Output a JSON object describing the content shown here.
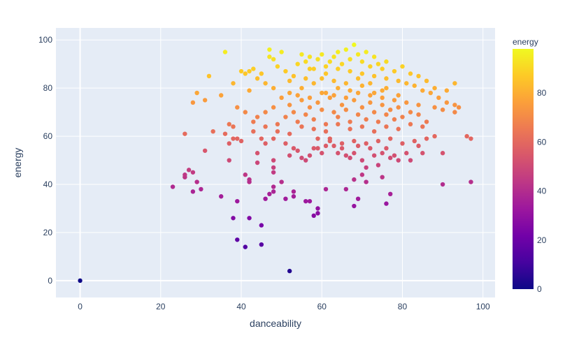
{
  "chart_data": {
    "type": "scatter",
    "title": "",
    "xlabel": "danceability",
    "ylabel": "energy",
    "xlim": [
      -6,
      103
    ],
    "ylim": [
      -7,
      105
    ],
    "xticks": [
      0,
      20,
      40,
      60,
      80,
      100
    ],
    "yticks": [
      0,
      20,
      40,
      60,
      80,
      100
    ],
    "grid": true,
    "colorbar": {
      "title": "energy",
      "range": [
        0,
        98
      ],
      "ticks": [
        0,
        20,
        40,
        60,
        80
      ],
      "colorscale": "plasma"
    },
    "series": [
      {
        "color_by": "energy",
        "points": [
          [
            0,
            0
          ],
          [
            52,
            4
          ],
          [
            41,
            14
          ],
          [
            45,
            15
          ],
          [
            39,
            17
          ],
          [
            38,
            26
          ],
          [
            42,
            26
          ],
          [
            45,
            23
          ],
          [
            23,
            39
          ],
          [
            26,
            43
          ],
          [
            26,
            44
          ],
          [
            27,
            46
          ],
          [
            28,
            45
          ],
          [
            28,
            37
          ],
          [
            29,
            41
          ],
          [
            30,
            38
          ],
          [
            35,
            35
          ],
          [
            39,
            33
          ],
          [
            41,
            44
          ],
          [
            42,
            42
          ],
          [
            42,
            41
          ],
          [
            44,
            49
          ],
          [
            46,
            34
          ],
          [
            47,
            36
          ],
          [
            48,
            39
          ],
          [
            48,
            37
          ],
          [
            50,
            41
          ],
          [
            51,
            34
          ],
          [
            53,
            37
          ],
          [
            53,
            35
          ],
          [
            56,
            33
          ],
          [
            57,
            33
          ],
          [
            58,
            27
          ],
          [
            59,
            30
          ],
          [
            59,
            28
          ],
          [
            61,
            38
          ],
          [
            66,
            38
          ],
          [
            68,
            42
          ],
          [
            68,
            31
          ],
          [
            69,
            34
          ],
          [
            71,
            41
          ],
          [
            75,
            43
          ],
          [
            76,
            32
          ],
          [
            77,
            36
          ],
          [
            90,
            40
          ],
          [
            97,
            41
          ],
          [
            26,
            61
          ],
          [
            31,
            54
          ],
          [
            33,
            62
          ],
          [
            36,
            61
          ],
          [
            37,
            57
          ],
          [
            37,
            50
          ],
          [
            38,
            59
          ],
          [
            38,
            64
          ],
          [
            39,
            59
          ],
          [
            40,
            58
          ],
          [
            43,
            62
          ],
          [
            44,
            53
          ],
          [
            45,
            59
          ],
          [
            46,
            57
          ],
          [
            48,
            50
          ],
          [
            48,
            47
          ],
          [
            48,
            45
          ],
          [
            48,
            59
          ],
          [
            51,
            57
          ],
          [
            52,
            52
          ],
          [
            53,
            55
          ],
          [
            54,
            54
          ],
          [
            55,
            51
          ],
          [
            56,
            50
          ],
          [
            57,
            52
          ],
          [
            58,
            55
          ],
          [
            59,
            55
          ],
          [
            60,
            53
          ],
          [
            61,
            56
          ],
          [
            62,
            59
          ],
          [
            63,
            56
          ],
          [
            64,
            53
          ],
          [
            65,
            55
          ],
          [
            66,
            52
          ],
          [
            67,
            51
          ],
          [
            68,
            53
          ],
          [
            69,
            56
          ],
          [
            70,
            50
          ],
          [
            70,
            44
          ],
          [
            71,
            47
          ],
          [
            72,
            55
          ],
          [
            73,
            52
          ],
          [
            74,
            48
          ],
          [
            75,
            53
          ],
          [
            76,
            55
          ],
          [
            77,
            51
          ],
          [
            78,
            52
          ],
          [
            79,
            50
          ],
          [
            81,
            53
          ],
          [
            82,
            50
          ],
          [
            84,
            56
          ],
          [
            85,
            53
          ],
          [
            86,
            59
          ],
          [
            88,
            60
          ],
          [
            90,
            53
          ],
          [
            96,
            60
          ],
          [
            97,
            59
          ],
          [
            28,
            74
          ],
          [
            29,
            78
          ],
          [
            31,
            75
          ],
          [
            32,
            85
          ],
          [
            35,
            77
          ],
          [
            37,
            65
          ],
          [
            38,
            82
          ],
          [
            39,
            72
          ],
          [
            40,
            87
          ],
          [
            41,
            86
          ],
          [
            42,
            79
          ],
          [
            42,
            87
          ],
          [
            43,
            88
          ],
          [
            44,
            84
          ],
          [
            45,
            86
          ],
          [
            46,
            82
          ],
          [
            47,
            96
          ],
          [
            48,
            92
          ],
          [
            48,
            80
          ],
          [
            49,
            89
          ],
          [
            50,
            95
          ],
          [
            51,
            87
          ],
          [
            52,
            83
          ],
          [
            53,
            85
          ],
          [
            54,
            90
          ],
          [
            55,
            94
          ],
          [
            56,
            91
          ],
          [
            57,
            93
          ],
          [
            58,
            88
          ],
          [
            59,
            92
          ],
          [
            60,
            94
          ],
          [
            61,
            89
          ],
          [
            62,
            91
          ],
          [
            63,
            93
          ],
          [
            64,
            95
          ],
          [
            65,
            90
          ],
          [
            66,
            96
          ],
          [
            67,
            92
          ],
          [
            68,
            98
          ],
          [
            69,
            94
          ],
          [
            70,
            91
          ],
          [
            71,
            95
          ],
          [
            72,
            89
          ],
          [
            73,
            93
          ],
          [
            74,
            90
          ],
          [
            75,
            88
          ],
          [
            76,
            91
          ],
          [
            78,
            87
          ],
          [
            80,
            89
          ],
          [
            82,
            86
          ],
          [
            84,
            85
          ],
          [
            86,
            83
          ],
          [
            88,
            80
          ],
          [
            91,
            79
          ],
          [
            93,
            82
          ],
          [
            93,
            73
          ],
          [
            94,
            72
          ],
          [
            36,
            95
          ],
          [
            47,
            93
          ],
          [
            57,
            88
          ],
          [
            61,
            86
          ],
          [
            64,
            88
          ],
          [
            67,
            87
          ],
          [
            70,
            86
          ],
          [
            73,
            85
          ],
          [
            76,
            84
          ],
          [
            79,
            83
          ],
          [
            81,
            82
          ],
          [
            83,
            81
          ],
          [
            85,
            79
          ],
          [
            87,
            78
          ],
          [
            89,
            76
          ],
          [
            91,
            74
          ],
          [
            93,
            70
          ],
          [
            44,
            68
          ],
          [
            46,
            70
          ],
          [
            48,
            72
          ],
          [
            49,
            65
          ],
          [
            50,
            76
          ],
          [
            51,
            68
          ],
          [
            52,
            73
          ],
          [
            53,
            70
          ],
          [
            54,
            66
          ],
          [
            55,
            75
          ],
          [
            56,
            69
          ],
          [
            57,
            72
          ],
          [
            58,
            67
          ],
          [
            59,
            74
          ],
          [
            60,
            71
          ],
          [
            61,
            65
          ],
          [
            62,
            76
          ],
          [
            63,
            70
          ],
          [
            64,
            68
          ],
          [
            65,
            73
          ],
          [
            66,
            71
          ],
          [
            67,
            66
          ],
          [
            68,
            75
          ],
          [
            69,
            69
          ],
          [
            70,
            72
          ],
          [
            71,
            67
          ],
          [
            72,
            74
          ],
          [
            73,
            70
          ],
          [
            74,
            66
          ],
          [
            75,
            73
          ],
          [
            76,
            69
          ],
          [
            77,
            71
          ],
          [
            78,
            67
          ],
          [
            79,
            72
          ],
          [
            80,
            68
          ],
          [
            82,
            70
          ],
          [
            84,
            69
          ],
          [
            86,
            66
          ],
          [
            88,
            72
          ],
          [
            90,
            71
          ],
          [
            41,
            70
          ],
          [
            43,
            66
          ],
          [
            46,
            64
          ],
          [
            49,
            62
          ],
          [
            52,
            61
          ],
          [
            55,
            64
          ],
          [
            58,
            63
          ],
          [
            61,
            62
          ],
          [
            64,
            65
          ],
          [
            67,
            63
          ],
          [
            70,
            64
          ],
          [
            73,
            62
          ],
          [
            76,
            64
          ],
          [
            79,
            63
          ],
          [
            82,
            65
          ],
          [
            85,
            64
          ],
          [
            55,
            80
          ],
          [
            58,
            82
          ],
          [
            61,
            78
          ],
          [
            64,
            80
          ],
          [
            67,
            79
          ],
          [
            70,
            81
          ],
          [
            73,
            78
          ],
          [
            76,
            80
          ],
          [
            79,
            77
          ],
          [
            56,
            84
          ],
          [
            60,
            84
          ],
          [
            63,
            83
          ],
          [
            66,
            82
          ],
          [
            69,
            84
          ],
          [
            72,
            82
          ],
          [
            75,
            79
          ],
          [
            52,
            78
          ],
          [
            54,
            77
          ],
          [
            57,
            76
          ],
          [
            60,
            78
          ],
          [
            63,
            77
          ],
          [
            66,
            76
          ],
          [
            69,
            78
          ],
          [
            72,
            77
          ],
          [
            75,
            76
          ],
          [
            78,
            75
          ],
          [
            81,
            74
          ],
          [
            84,
            73
          ],
          [
            59,
            59
          ],
          [
            62,
            58
          ],
          [
            65,
            57
          ],
          [
            68,
            58
          ],
          [
            71,
            57
          ],
          [
            74,
            58
          ],
          [
            77,
            59
          ],
          [
            80,
            57
          ],
          [
            83,
            58
          ]
        ]
      }
    ]
  }
}
